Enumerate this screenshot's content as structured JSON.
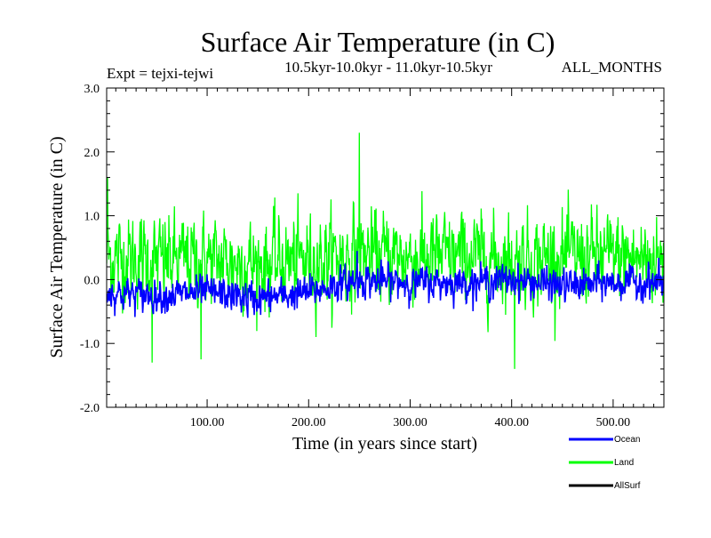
{
  "chart_data": {
    "type": "line",
    "title": "Surface Air Temperature (in C)",
    "subtitle_left": "Expt = tejxi-tejwi",
    "subtitle_center": "10.5kyr-10.0kyr - 11.0kyr-10.5kyr",
    "subtitle_right": "ALL_MONTHS",
    "xlabel": "Time (in years since start)",
    "ylabel": "Surface Air Temperature (in C)",
    "xlim": [
      1,
      550
    ],
    "ylim": [
      -2.0,
      3.0
    ],
    "x_ticks": [
      100,
      200,
      300,
      400,
      500
    ],
    "x_tick_labels": [
      "100.00",
      "200.00",
      "300.00",
      "400.00",
      "500.00"
    ],
    "y_ticks": [
      -2.0,
      -1.0,
      0.0,
      1.0,
      2.0,
      3.0
    ],
    "y_tick_labels": [
      "-2.0",
      "-1.0",
      "0.0",
      "1.0",
      "2.0",
      "3.0"
    ],
    "grid": false,
    "legend_position": "bottom-right, outside plot",
    "series": [
      {
        "name": "Land",
        "color": "#00ff00",
        "description": "noisy monthly series, mean about +0.35 C, range about -1.4 to +2.3 C",
        "mean_profile": {
          "x": [
            1,
            50,
            100,
            150,
            200,
            250,
            300,
            350,
            400,
            450,
            500,
            550
          ],
          "y": [
            0.35,
            0.3,
            0.3,
            0.25,
            0.3,
            0.4,
            0.35,
            0.35,
            0.3,
            0.35,
            0.35,
            0.3
          ]
        },
        "spread": 0.38,
        "notable_points": [
          {
            "x": 250,
            "y": 2.3
          },
          {
            "x": 403,
            "y": -1.4
          },
          {
            "x": 46,
            "y": -1.3
          },
          {
            "x": 94,
            "y": -1.25
          },
          {
            "x": 2,
            "y": 1.6
          }
        ]
      },
      {
        "name": "Ocean",
        "color": "#0000ff",
        "description": "monthly series, mean near -0.1 C, range about -0.6 to +0.4 C",
        "mean_profile": {
          "x": [
            1,
            50,
            100,
            150,
            200,
            250,
            300,
            350,
            400,
            450,
            500,
            550
          ],
          "y": [
            -0.2,
            -0.25,
            -0.2,
            -0.3,
            -0.2,
            0.0,
            -0.05,
            -0.05,
            0.0,
            -0.1,
            -0.05,
            -0.05
          ]
        },
        "spread": 0.14,
        "notable_points": [
          {
            "x": 248,
            "y": 0.45
          },
          {
            "x": 140,
            "y": -0.6
          }
        ]
      },
      {
        "name": "AllSurf",
        "color": "#000000",
        "description": "legend entry only; line not visible in plot"
      }
    ]
  }
}
